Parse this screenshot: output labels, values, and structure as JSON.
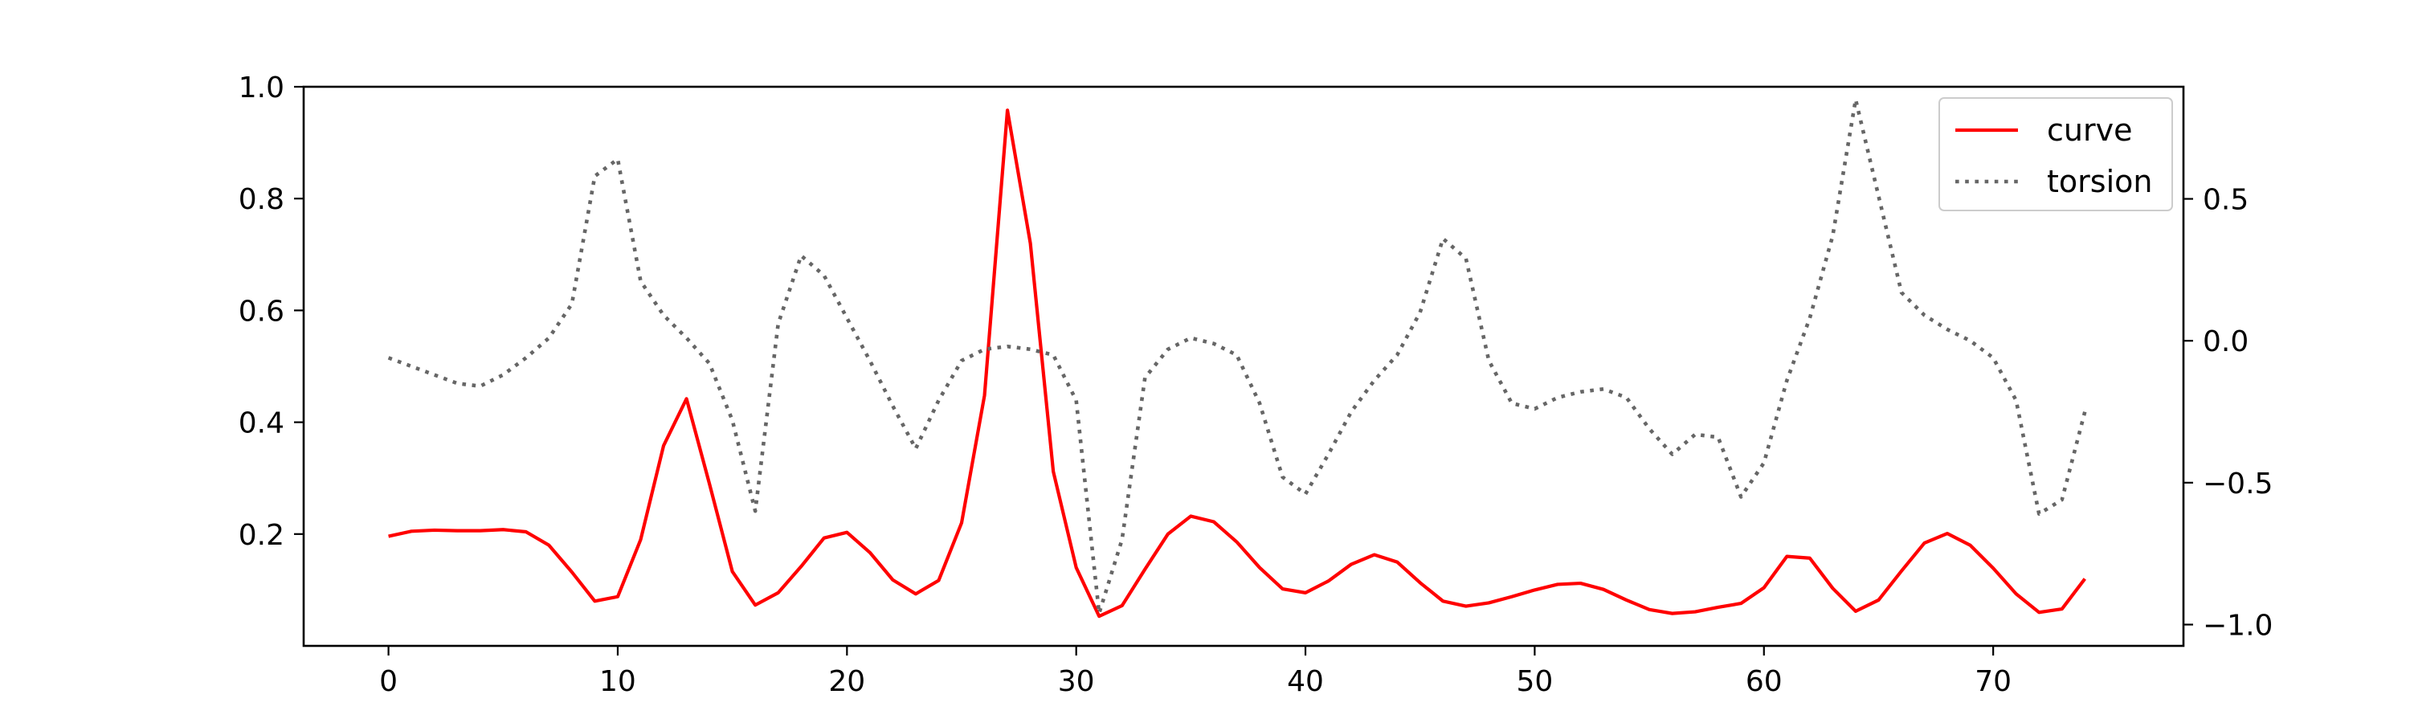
{
  "chart_data": {
    "type": "line",
    "title": "",
    "xlabel": "",
    "ylabel_left": "",
    "ylabel_right": "",
    "xlim": [
      -3.7,
      78.3
    ],
    "ylim_left": [
      0.0,
      1.0
    ],
    "ylim_right": [
      -1.075,
      0.895
    ],
    "x_ticks": [
      0,
      10,
      20,
      30,
      40,
      50,
      60,
      70
    ],
    "x_tick_labels": [
      "0",
      "10",
      "20",
      "30",
      "40",
      "50",
      "60",
      "70"
    ],
    "y_left_ticks": [
      0.2,
      0.4,
      0.6,
      0.8,
      1.0
    ],
    "y_left_tick_labels": [
      "0.2",
      "0.4",
      "0.6",
      "0.8",
      "1.0"
    ],
    "y_right_ticks": [
      0.5,
      0.0,
      -0.5,
      -1.0
    ],
    "y_right_tick_labels": [
      "0.5",
      "0.0",
      "−0.5",
      "−1.0"
    ],
    "grid": false,
    "legend_position": "top-right",
    "series": [
      {
        "name": "curve",
        "axis": "left",
        "color": "#ff0000",
        "style": "solid",
        "x": [
          0,
          1,
          2,
          3,
          4,
          5,
          6,
          7,
          8,
          9,
          10,
          11,
          12,
          13,
          14,
          15,
          16,
          17,
          18,
          19,
          20,
          21,
          22,
          23,
          24,
          25,
          26,
          27,
          28,
          29,
          30,
          31,
          32,
          33,
          34,
          35,
          36,
          37,
          38,
          39,
          40,
          41,
          42,
          43,
          44,
          45,
          46,
          47,
          48,
          49,
          50,
          51,
          52,
          53,
          54,
          55,
          56,
          57,
          58,
          59,
          60,
          61,
          62,
          63,
          64,
          65,
          66,
          67,
          68,
          69,
          70,
          71,
          72,
          73,
          74
        ],
        "values": [
          0.196,
          0.205,
          0.207,
          0.206,
          0.206,
          0.208,
          0.204,
          0.18,
          0.132,
          0.08,
          0.088,
          0.19,
          0.358,
          0.442,
          0.29,
          0.133,
          0.073,
          0.095,
          0.142,
          0.193,
          0.203,
          0.167,
          0.118,
          0.093,
          0.117,
          0.22,
          0.448,
          0.958,
          0.72,
          0.312,
          0.14,
          0.053,
          0.072,
          0.137,
          0.2,
          0.232,
          0.222,
          0.186,
          0.14,
          0.102,
          0.095,
          0.116,
          0.146,
          0.163,
          0.15,
          0.113,
          0.08,
          0.071,
          0.077,
          0.088,
          0.1,
          0.11,
          0.112,
          0.101,
          0.082,
          0.065,
          0.058,
          0.061,
          0.069,
          0.076,
          0.104,
          0.16,
          0.157,
          0.103,
          0.062,
          0.082,
          0.134,
          0.184,
          0.201,
          0.18,
          0.139,
          0.093,
          0.06,
          0.066,
          0.12
        ]
      },
      {
        "name": "torsion",
        "axis": "right",
        "color": "#666666",
        "style": "dotted",
        "x": [
          0,
          1,
          2,
          3,
          4,
          5,
          6,
          7,
          8,
          9,
          10,
          11,
          12,
          13,
          14,
          15,
          16,
          17,
          18,
          19,
          20,
          21,
          22,
          23,
          24,
          25,
          26,
          27,
          28,
          29,
          30,
          31,
          32,
          33,
          34,
          35,
          36,
          37,
          38,
          39,
          40,
          41,
          42,
          43,
          44,
          45,
          46,
          47,
          48,
          49,
          50,
          51,
          52,
          53,
          54,
          55,
          56,
          57,
          58,
          59,
          60,
          61,
          62,
          63,
          64,
          65,
          66,
          67,
          68,
          69,
          70,
          71,
          72,
          73,
          74
        ],
        "values": [
          -0.06,
          -0.09,
          -0.12,
          -0.15,
          -0.16,
          -0.12,
          -0.06,
          0.01,
          0.13,
          0.58,
          0.64,
          0.21,
          0.09,
          0.01,
          -0.08,
          -0.28,
          -0.6,
          0.06,
          0.3,
          0.23,
          0.08,
          -0.07,
          -0.23,
          -0.38,
          -0.21,
          -0.07,
          -0.03,
          -0.02,
          -0.03,
          -0.05,
          -0.21,
          -0.96,
          -0.7,
          -0.13,
          -0.03,
          0.01,
          -0.01,
          -0.05,
          -0.22,
          -0.48,
          -0.54,
          -0.4,
          -0.25,
          -0.14,
          -0.05,
          0.1,
          0.36,
          0.29,
          -0.07,
          -0.22,
          -0.24,
          -0.2,
          -0.18,
          -0.17,
          -0.2,
          -0.31,
          -0.4,
          -0.33,
          -0.34,
          -0.55,
          -0.43,
          -0.14,
          0.08,
          0.37,
          0.85,
          0.51,
          0.17,
          0.09,
          0.04,
          0.0,
          -0.06,
          -0.21,
          -0.61,
          -0.56,
          -0.25
        ]
      }
    ]
  }
}
